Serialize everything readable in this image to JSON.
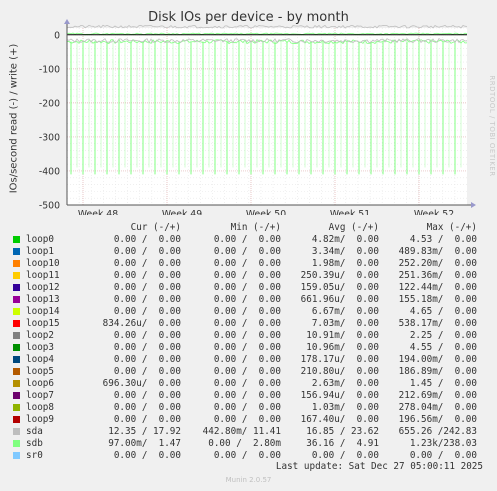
{
  "title": "Disk IOs per device - by month",
  "y_axis_label": "IOs/second read (-) / write (+)",
  "watermark": "RRDTOOL / TOBI OETIKER",
  "legend_header": {
    "cur": "Cur (-/+)",
    "min": "Min (-/+)",
    "avg": "Avg (-/+)",
    "max": "Max (-/+)"
  },
  "legend": [
    {
      "name": "loop0",
      "color": "#00cc00",
      "cur": "0.00 /  0.00",
      "min": "0.00 /  0.00",
      "avg": "4.82m/  0.00",
      "max": "4.53 /  0.00"
    },
    {
      "name": "loop1",
      "color": "#0066b3",
      "cur": "0.00 /  0.00",
      "min": "0.00 /  0.00",
      "avg": "3.34m/  0.00",
      "max": "489.83m/  0.00"
    },
    {
      "name": "loop10",
      "color": "#ff8000",
      "cur": "0.00 /  0.00",
      "min": "0.00 /  0.00",
      "avg": "1.98m/  0.00",
      "max": "252.20m/  0.00"
    },
    {
      "name": "loop11",
      "color": "#ffcc00",
      "cur": "0.00 /  0.00",
      "min": "0.00 /  0.00",
      "avg": "250.39u/  0.00",
      "max": "251.36m/  0.00"
    },
    {
      "name": "loop12",
      "color": "#330099",
      "cur": "0.00 /  0.00",
      "min": "0.00 /  0.00",
      "avg": "159.05u/  0.00",
      "max": "122.44m/  0.00"
    },
    {
      "name": "loop13",
      "color": "#990099",
      "cur": "0.00 /  0.00",
      "min": "0.00 /  0.00",
      "avg": "661.96u/  0.00",
      "max": "155.18m/  0.00"
    },
    {
      "name": "loop14",
      "color": "#ccff00",
      "cur": "0.00 /  0.00",
      "min": "0.00 /  0.00",
      "avg": "6.67m/  0.00",
      "max": "4.65 /  0.00"
    },
    {
      "name": "loop15",
      "color": "#ff0000",
      "cur": "834.26u/  0.00",
      "min": "0.00 /  0.00",
      "avg": "7.03m/  0.00",
      "max": "538.17m/  0.00"
    },
    {
      "name": "loop2",
      "color": "#808080",
      "cur": "0.00 /  0.00",
      "min": "0.00 /  0.00",
      "avg": "10.91m/  0.00",
      "max": "2.25 /  0.00"
    },
    {
      "name": "loop3",
      "color": "#008f00",
      "cur": "0.00 /  0.00",
      "min": "0.00 /  0.00",
      "avg": "10.96m/  0.00",
      "max": "4.55 /  0.00"
    },
    {
      "name": "loop4",
      "color": "#00487d",
      "cur": "0.00 /  0.00",
      "min": "0.00 /  0.00",
      "avg": "178.17u/  0.00",
      "max": "194.00m/  0.00"
    },
    {
      "name": "loop5",
      "color": "#b35a00",
      "cur": "0.00 /  0.00",
      "min": "0.00 /  0.00",
      "avg": "210.80u/  0.00",
      "max": "186.89m/  0.00"
    },
    {
      "name": "loop6",
      "color": "#b38f00",
      "cur": "696.30u/  0.00",
      "min": "0.00 /  0.00",
      "avg": "2.63m/  0.00",
      "max": "1.45 /  0.00"
    },
    {
      "name": "loop7",
      "color": "#6b006b",
      "cur": "0.00 /  0.00",
      "min": "0.00 /  0.00",
      "avg": "156.94u/  0.00",
      "max": "212.69m/  0.00"
    },
    {
      "name": "loop8",
      "color": "#8fb300",
      "cur": "0.00 /  0.00",
      "min": "0.00 /  0.00",
      "avg": "1.03m/  0.00",
      "max": "278.04m/  0.00"
    },
    {
      "name": "loop9",
      "color": "#b30000",
      "cur": "0.00 /  0.00",
      "min": "0.00 /  0.00",
      "avg": "167.40u/  0.00",
      "max": "196.56m/  0.00"
    },
    {
      "name": "sda",
      "color": "#bebebe",
      "cur": "12.35 / 17.92",
      "min": "442.80m/ 11.41",
      "avg": "16.85 / 23.62",
      "max": "655.26 /242.83"
    },
    {
      "name": "sdb",
      "color": "#80ff80",
      "cur": "97.00m/  1.47",
      "min": "0.00 /  2.80m",
      "avg": "36.16 /  4.91",
      "max": "1.23k/238.03"
    },
    {
      "name": "sr0",
      "color": "#80c9ff",
      "cur": "0.00 /  0.00",
      "min": "0.00 /  0.00",
      "avg": "0.00 /  0.00",
      "max": "0.00 /  0.00"
    }
  ],
  "last_update": "Last update: Sat Dec 27 05:00:11 2025",
  "munin_version": "Munin 2.0.57",
  "chart_data": {
    "type": "line",
    "title": "Disk IOs per device - by month",
    "ylabel": "IOs/second read (-) / write (+)",
    "ylim": [
      -500,
      20
    ],
    "y_ticks": [
      0,
      -100,
      -200,
      -300,
      -400,
      -500
    ],
    "x_ticks": [
      "Week 48",
      "Week 49",
      "Week 50",
      "Week 51",
      "Week 52"
    ],
    "grid": true,
    "series": [
      {
        "name": "sdb",
        "color": "#80ff80",
        "read_spike_days": 33,
        "read_spike_value": -410,
        "read_baseline": -20,
        "write_baseline": 3
      },
      {
        "name": "sda",
        "color": "#bebebe",
        "read_baseline": -17,
        "write_baseline": 24
      }
    ]
  }
}
